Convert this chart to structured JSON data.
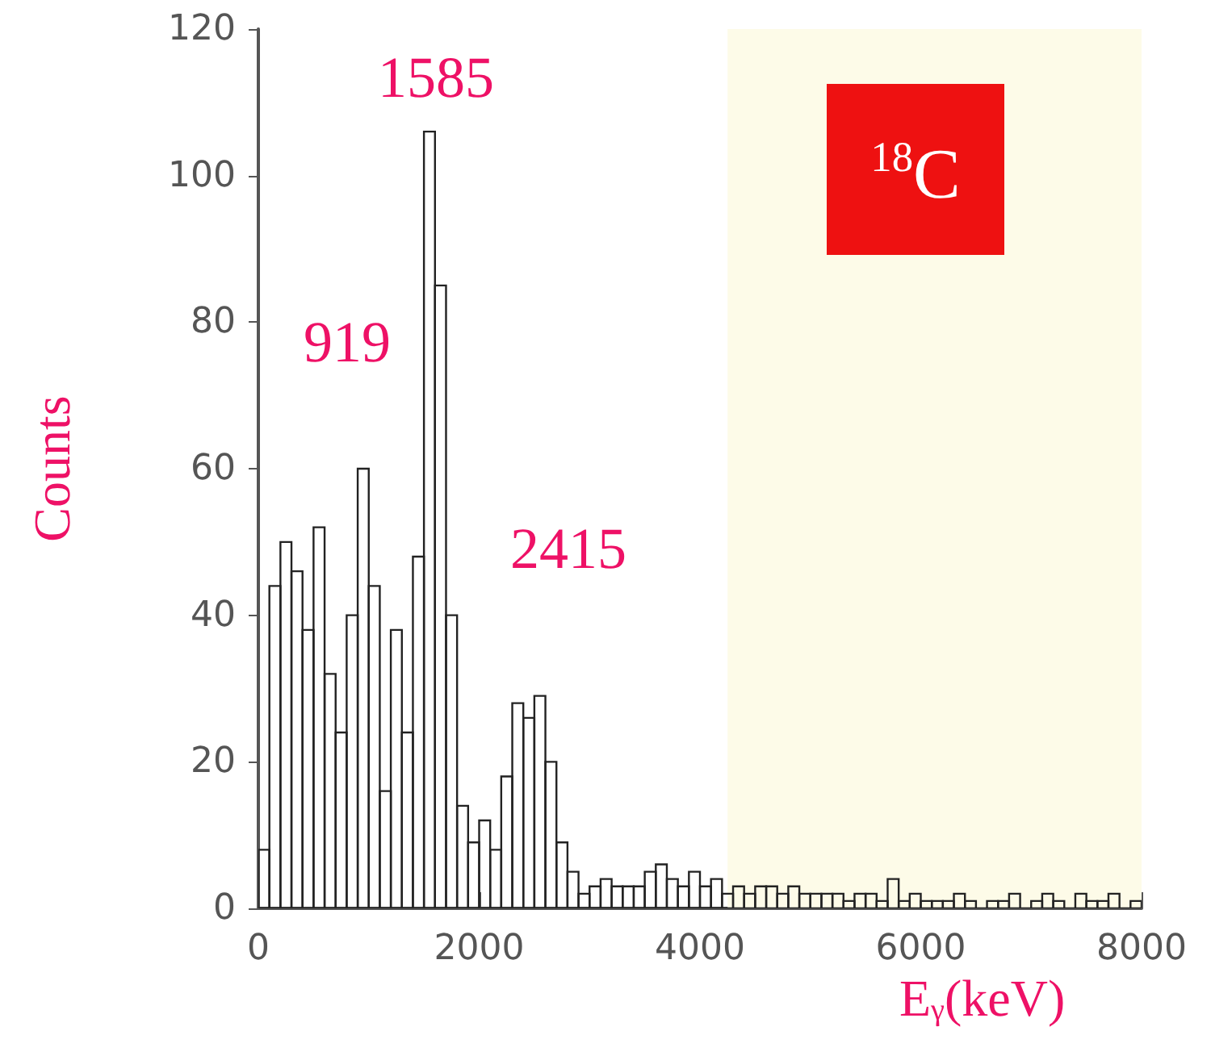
{
  "chart_data": {
    "type": "histogram",
    "xlabel": "E$_{γ}$(keV)",
    "ylabel": "Counts",
    "bins": [
      0,
      100,
      200,
      300,
      400,
      500,
      600,
      700,
      800,
      900,
      1000,
      1100,
      1200,
      1300,
      1400,
      1500,
      1600,
      1700,
      1800,
      1900,
      2000,
      2100,
      2200,
      2300,
      2400,
      2500,
      2600,
      2700,
      2800,
      2900,
      3000,
      3100,
      3200,
      3300,
      3400,
      3500,
      3600,
      3700,
      3800,
      3900,
      4000,
      4100,
      4200,
      4300,
      4400,
      4500,
      4600,
      4700,
      4800,
      4900,
      5000,
      5100,
      5200,
      5300,
      5400,
      5500,
      5600,
      5700,
      5800,
      5900,
      6000,
      6100,
      6200,
      6300,
      6400,
      6500,
      6600,
      6700,
      6800,
      6900,
      7000,
      7100,
      7200,
      7300,
      7400,
      7500,
      7600,
      7700,
      7800,
      7900,
      8000
    ],
    "values": [
      8,
      44,
      50,
      46,
      38,
      52,
      32,
      24,
      40,
      60,
      44,
      16,
      38,
      24,
      48,
      106,
      85,
      40,
      14,
      9,
      12,
      8,
      18,
      28,
      26,
      29,
      20,
      9,
      5,
      2,
      3,
      4,
      3,
      3,
      3,
      5,
      6,
      4,
      3,
      5,
      3,
      4,
      2,
      3,
      2,
      3,
      3,
      2,
      3,
      2,
      2,
      2,
      2,
      1,
      2,
      2,
      1,
      4,
      1,
      2,
      1,
      1,
      1,
      2,
      1,
      0,
      1,
      1,
      2,
      0,
      1,
      2,
      1,
      0,
      2,
      1,
      1,
      2,
      0,
      1
    ],
    "color": "#222222",
    "xlim": [
      0,
      8000
    ],
    "xticks": [
      0,
      2000,
      4000,
      6000,
      8000
    ],
    "ylim": [
      0,
      120
    ],
    "yticks": [
      0,
      20,
      40,
      60,
      80,
      100,
      120
    ],
    "grid": false,
    "bands": [
      {
        "axis": "x",
        "from": 4250,
        "to": 8000,
        "color": "#fdfbe8"
      }
    ],
    "annotations": [
      "1585",
      "919",
      "2415",
      "$^{18}$C"
    ]
  }
}
